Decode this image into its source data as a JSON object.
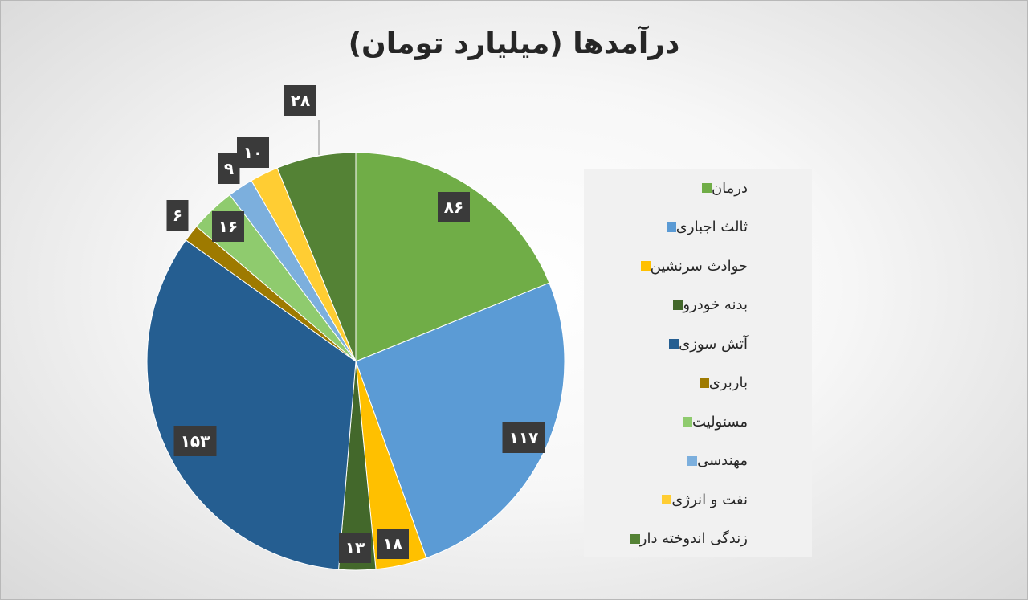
{
  "chart_data": {
    "type": "pie",
    "title": "درآمدها (میلیارد تومان)",
    "categories": [
      "درمان",
      "ثالث اجباری",
      "حوادث سرنشین",
      "بدنه خودرو",
      "آتش سوزی",
      "باربری",
      "مسئولیت",
      "مهندسی",
      "نفت و انرژی",
      "زندگی اندوخته دار"
    ],
    "values": [
      86,
      117,
      18,
      13,
      153,
      6,
      16,
      9,
      10,
      28
    ],
    "value_labels": [
      "۸۶",
      "۱۱۷",
      "۱۸",
      "۱۳",
      "۱۵۳",
      "۶",
      "۱۶",
      "۹",
      "۱۰",
      "۲۸"
    ],
    "colors": [
      "#70ad47",
      "#5b9bd5",
      "#ffc000",
      "#43682b",
      "#255e91",
      "#9e7a00",
      "#8fcb6e",
      "#7cafdd",
      "#ffcd33",
      "#548235"
    ],
    "legend_position": "right"
  }
}
